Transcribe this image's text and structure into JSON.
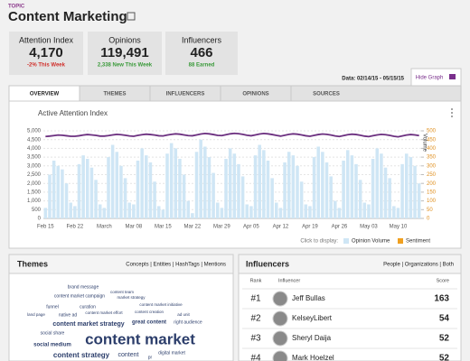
{
  "header": {
    "topic_label": "TOPIC",
    "title": "Content Marketing"
  },
  "stats": [
    {
      "label": "Attention Index",
      "value": "4,170",
      "change": "-2% This Week",
      "change_color": "#d0312d"
    },
    {
      "label": "Opinions",
      "value": "119,491",
      "change": "2,338 New This Week",
      "change_color": "#3a9a3a"
    },
    {
      "label": "Influencers",
      "value": "466",
      "change": "88 Earned",
      "change_color": "#3a9a3a"
    }
  ],
  "date_range": "Data: 02/14/15 - 05/15/15",
  "hide_graph": "Hide Graph",
  "tabs": [
    "OVERVIEW",
    "THEMES",
    "INFLUENCERS",
    "OPINIONS",
    "SOURCES"
  ],
  "chart_data": {
    "type": "bar",
    "title": "Active Attention Index",
    "y2label": "Volume",
    "legend_prompt": "Click to display:",
    "grid": true,
    "categories": [
      "Feb 15",
      null,
      null,
      null,
      null,
      null,
      null,
      "Feb 22",
      null,
      null,
      null,
      null,
      null,
      null,
      "March",
      null,
      null,
      null,
      null,
      null,
      null,
      "Mar 08",
      null,
      null,
      null,
      null,
      null,
      null,
      "Mar 15",
      null,
      null,
      null,
      null,
      null,
      null,
      "Mar 22",
      null,
      null,
      null,
      null,
      null,
      null,
      "Mar 29",
      null,
      null,
      null,
      null,
      null,
      null,
      "Apr 05",
      null,
      null,
      null,
      null,
      null,
      null,
      "Apr 12",
      null,
      null,
      null,
      null,
      null,
      null,
      "Apr 19",
      null,
      null,
      null,
      null,
      null,
      null,
      "Apr 26",
      null,
      null,
      null,
      null,
      null,
      null,
      "May 03",
      null,
      null,
      null,
      null,
      null,
      null,
      "May 10",
      null,
      null,
      null,
      null,
      null
    ],
    "ylim": [
      0,
      5000
    ],
    "yticks": [
      0,
      500,
      {
        "value": 1000,
        "label": "1,000"
      },
      {
        "value": 1500,
        "label": "1,500"
      },
      {
        "value": 2000,
        "label": "2,000"
      },
      {
        "value": 2500,
        "label": "2,500"
      },
      {
        "value": 3000,
        "label": "3,000"
      },
      {
        "value": 3500,
        "label": "3,500"
      },
      {
        "value": 4000,
        "label": "4,000"
      },
      {
        "value": 4500,
        "label": "4,500"
      },
      {
        "value": 5000,
        "label": "5,000"
      }
    ],
    "y2lim": [
      0,
      500
    ],
    "y2ticks": [
      0,
      50,
      100,
      150,
      200,
      250,
      300,
      350,
      400,
      450,
      500
    ],
    "series": [
      {
        "name": "Opinion Volume",
        "color": "#cfe6f5",
        "axis": "y2",
        "values": [
          60,
          250,
          330,
          300,
          280,
          200,
          90,
          70,
          310,
          360,
          340,
          290,
          220,
          80,
          60,
          350,
          420,
          380,
          300,
          230,
          90,
          80,
          330,
          400,
          360,
          320,
          210,
          70,
          50,
          370,
          430,
          400,
          340,
          250,
          100,
          30,
          380,
          450,
          410,
          350,
          260,
          90,
          60,
          340,
          400,
          370,
          310,
          240,
          80,
          70,
          360,
          420,
          390,
          330,
          230,
          90,
          60,
          320,
          380,
          360,
          300,
          210,
          80,
          70,
          350,
          410,
          380,
          320,
          240,
          100,
          60,
          330,
          390,
          360,
          310,
          220,
          90,
          80,
          340,
          400,
          370,
          290,
          230,
          70,
          60,
          310,
          370,
          350,
          300,
          200
        ]
      },
      {
        "type": "line",
        "color": "#6b2f7f",
        "values": [
          4680,
          4700,
          4730,
          4760,
          4750,
          4720,
          4690,
          4690,
          4720,
          4760,
          4790,
          4770,
          4740,
          4700,
          4700,
          4730,
          4770,
          4800,
          4780,
          4750,
          4710,
          4690,
          4740,
          4780,
          4810,
          4790,
          4760,
          4720,
          4710,
          4760,
          4800,
          4830,
          4810,
          4770,
          4730,
          4720,
          4770,
          4820,
          4850,
          4830,
          4790,
          4740,
          4730,
          4780,
          4830,
          4860,
          4840,
          4800,
          4750,
          4720,
          4770,
          4820,
          4850,
          4830,
          4790,
          4740,
          4700,
          4750,
          4800,
          4830,
          4810,
          4770,
          4720,
          4690,
          4740,
          4790,
          4820,
          4800,
          4760,
          4710,
          4680,
          4730,
          4780,
          4810,
          4790,
          4750,
          4700,
          4670,
          4720,
          4770,
          4800,
          4780,
          4740,
          4690,
          4660,
          4710,
          4760,
          4790,
          4770,
          4730
        ]
      },
      {
        "name": "Sentiment",
        "color": "#f0a020",
        "axis": "y2",
        "values": [
          null,
          null,
          null,
          null,
          null,
          null,
          null,
          null,
          null,
          null,
          null,
          null,
          null,
          null,
          null,
          null,
          null,
          null,
          null,
          null,
          null,
          null,
          null,
          null,
          null,
          null,
          null,
          null,
          null,
          null,
          null,
          null,
          null,
          null,
          null,
          null,
          null,
          null,
          null,
          null,
          null,
          null,
          null,
          null,
          null,
          null,
          null,
          null,
          null,
          null,
          null,
          null,
          null,
          null,
          null,
          null,
          null,
          null,
          null,
          null,
          null,
          null,
          null,
          null,
          null,
          null,
          null,
          null,
          null,
          null,
          null,
          null,
          null,
          null,
          null,
          null,
          null,
          null,
          null,
          null,
          null,
          null,
          null,
          null,
          null,
          null,
          null,
          null,
          null,
          null
        ]
      }
    ]
  },
  "themes": {
    "title": "Themes",
    "filters": "Concepts | Entities | HashTags | Mentions",
    "words": [
      "brand message",
      "content team",
      "content market campaign",
      "market strategy",
      "funnel",
      "curation",
      "content market initiative",
      "land page",
      "native ad",
      "content market effort",
      "content creation",
      "ad unit",
      "content market strategy",
      "great content",
      "right audience",
      "social share",
      "content market",
      "social medium",
      "content strategy",
      "content",
      "digital market",
      "pr"
    ]
  },
  "influencers": {
    "title": "Influencers",
    "filters": "People | Organizations | Both",
    "columns": [
      "Rank",
      "Influencer",
      "Score"
    ],
    "rows": [
      {
        "rank": "#1",
        "name": "Jeff Bullas",
        "score": 163
      },
      {
        "rank": "#2",
        "name": "KelseyLibert",
        "score": 54
      },
      {
        "rank": "#3",
        "name": "Sheryl Daija",
        "score": 52
      },
      {
        "rank": "#4",
        "name": "Mark Hoelzel",
        "score": 52
      }
    ]
  }
}
